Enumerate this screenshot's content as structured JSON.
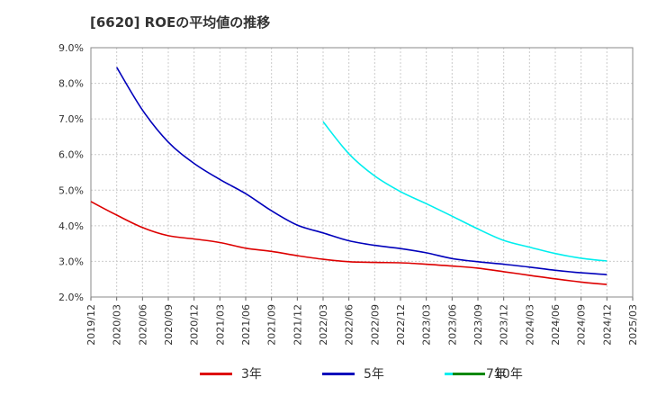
{
  "chart_data": {
    "type": "line",
    "title": "[6620]  ROEの平均値の推移",
    "xlabel": "",
    "ylabel": "",
    "ylim": [
      2.0,
      9.0
    ],
    "y_tick_labels": [
      "2.0%",
      "3.0%",
      "4.0%",
      "5.0%",
      "6.0%",
      "7.0%",
      "8.0%",
      "9.0%"
    ],
    "x_tick_labels": [
      "2019/12",
      "2020/03",
      "2020/06",
      "2020/09",
      "2020/12",
      "2021/03",
      "2021/06",
      "2021/09",
      "2021/12",
      "2022/03",
      "2022/06",
      "2022/09",
      "2022/12",
      "2023/03",
      "2023/06",
      "2023/09",
      "2023/12",
      "2024/03",
      "2024/06",
      "2024/09",
      "2024/12",
      "2025/03"
    ],
    "grid": true,
    "legend_position": "bottom",
    "series": [
      {
        "name": "3年",
        "color": "#dd0000",
        "x": [
          "2019/12",
          "2020/03",
          "2020/06",
          "2020/09",
          "2020/12",
          "2021/03",
          "2021/06",
          "2021/09",
          "2021/12",
          "2022/03",
          "2022/06",
          "2022/09",
          "2022/12",
          "2023/03",
          "2023/06",
          "2023/09",
          "2023/12",
          "2024/03",
          "2024/06",
          "2024/09",
          "2024/12"
        ],
        "values": [
          4.68,
          4.3,
          3.95,
          3.72,
          3.63,
          3.53,
          3.37,
          3.28,
          3.16,
          3.06,
          2.99,
          2.97,
          2.96,
          2.92,
          2.87,
          2.81,
          2.71,
          2.61,
          2.51,
          2.42,
          2.35
        ]
      },
      {
        "name": "5年",
        "color": "#0000bb",
        "x": [
          "2020/03",
          "2020/06",
          "2020/09",
          "2020/12",
          "2021/03",
          "2021/06",
          "2021/09",
          "2021/12",
          "2022/03",
          "2022/06",
          "2022/09",
          "2022/12",
          "2023/03",
          "2023/06",
          "2023/09",
          "2023/12",
          "2024/03",
          "2024/06",
          "2024/09",
          "2024/12"
        ],
        "values": [
          8.45,
          7.25,
          6.35,
          5.75,
          5.3,
          4.9,
          4.42,
          4.02,
          3.8,
          3.58,
          3.45,
          3.36,
          3.24,
          3.08,
          2.99,
          2.92,
          2.84,
          2.75,
          2.68,
          2.63
        ]
      },
      {
        "name": "7年",
        "color": "#00eeee",
        "x": [
          "2022/03",
          "2022/06",
          "2022/09",
          "2022/12",
          "2023/03",
          "2023/06",
          "2023/09",
          "2023/12",
          "2024/03",
          "2024/06",
          "2024/09",
          "2024/12"
        ],
        "values": [
          6.92,
          6.02,
          5.4,
          4.96,
          4.62,
          4.27,
          3.91,
          3.59,
          3.4,
          3.22,
          3.09,
          3.01
        ]
      },
      {
        "name": "10年",
        "color": "#008800",
        "x": [],
        "values": []
      }
    ]
  }
}
